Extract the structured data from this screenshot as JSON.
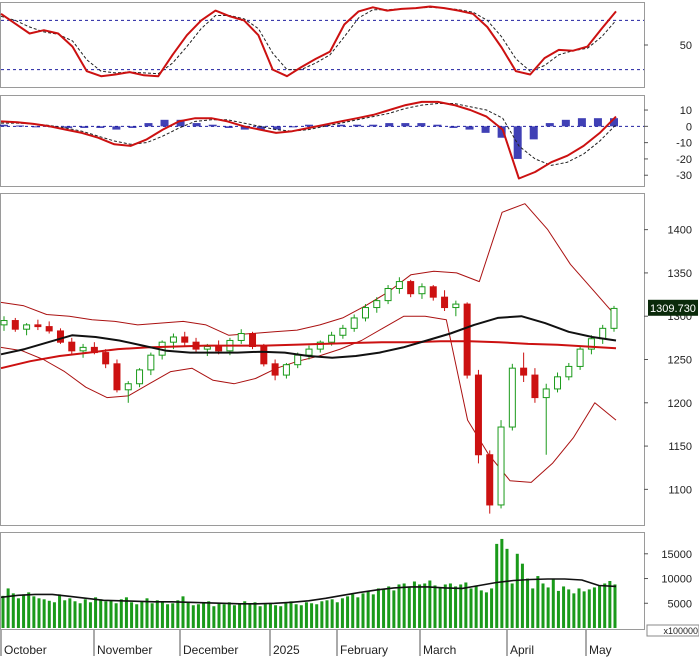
{
  "chart_data": [
    {
      "type": "line",
      "panel": "stochastic-oscillator",
      "y_ticks": [
        "50"
      ],
      "ylim": [
        0,
        100
      ],
      "reference_levels": [
        20,
        80
      ],
      "series": [
        {
          "role": "%K",
          "color": "#cc1111",
          "values": [
            88,
            76,
            64,
            68,
            64,
            48,
            18,
            12,
            14,
            17,
            13,
            12,
            38,
            62,
            80,
            92,
            85,
            80,
            62,
            20,
            12,
            23,
            33,
            42,
            75,
            91,
            96,
            92,
            94,
            95,
            97,
            95,
            92,
            88,
            72,
            47,
            18,
            14,
            34,
            44,
            43,
            48,
            70,
            91
          ]
        },
        {
          "role": "%D",
          "color": "#222222",
          "values": [
            85,
            80,
            72,
            66,
            63,
            55,
            32,
            18,
            16,
            17,
            16,
            15,
            28,
            48,
            70,
            86,
            86,
            82,
            70,
            40,
            20,
            20,
            28,
            38,
            60,
            83,
            93,
            93,
            94,
            95,
            96,
            95,
            93,
            90,
            80,
            60,
            33,
            18,
            25,
            38,
            43,
            46,
            60,
            80
          ]
        }
      ],
      "x_index": "weekly-ish samples Oct 2024 – May 2025"
    },
    {
      "type": "bar+line",
      "panel": "macd",
      "y_ticks": [
        "10",
        "0",
        "-10",
        "-20",
        "-30"
      ],
      "ylim": [
        -36,
        18
      ],
      "series": [
        {
          "role": "macd-line",
          "color": "#cc1111",
          "values": [
            3,
            2.5,
            1.5,
            0,
            -2,
            -4,
            -7,
            -11,
            -12,
            -8,
            -2,
            3,
            5,
            5,
            3,
            0,
            -2,
            -4,
            -3,
            -1,
            1,
            3,
            5,
            7,
            10,
            13,
            15,
            15,
            13,
            10,
            6,
            -2,
            -32,
            -28,
            -22,
            -18,
            -12,
            -4,
            6
          ]
        },
        {
          "role": "signal-line",
          "color": "#222222",
          "values": [
            2,
            2,
            1.5,
            0.5,
            -1,
            -3,
            -6,
            -9,
            -11,
            -10,
            -6,
            -1,
            3,
            4,
            4,
            2,
            0,
            -2,
            -3,
            -2,
            0,
            2,
            4,
            6,
            8,
            11,
            13,
            14,
            14,
            12,
            10,
            5,
            -12,
            -20,
            -24,
            -22,
            -17,
            -9,
            1
          ]
        },
        {
          "role": "histogram",
          "color": "#1f1fa8",
          "values": [
            1,
            0.5,
            0,
            -0.5,
            -1,
            -1,
            -1,
            -2,
            -1,
            2,
            4,
            4,
            2,
            1,
            -1,
            -2,
            -2,
            -2,
            0,
            1,
            1,
            1,
            1,
            1,
            2,
            2,
            2,
            1,
            -1,
            -2,
            -4,
            -7,
            -20,
            -8,
            2,
            4,
            5,
            5,
            5
          ]
        }
      ]
    },
    {
      "type": "candlestick",
      "panel": "price",
      "y_ticks": [
        "1400",
        "1350",
        "1300",
        "1250",
        "1200",
        "1150",
        "1100"
      ],
      "ylim": [
        1060,
        1440
      ],
      "last_price_label": "1309.730",
      "candles_ohlc": [
        [
          1290,
          1300,
          1283,
          1295
        ],
        [
          1295,
          1298,
          1282,
          1285
        ],
        [
          1285,
          1292,
          1278,
          1290
        ],
        [
          1290,
          1296,
          1284,
          1288
        ],
        [
          1288,
          1294,
          1280,
          1283
        ],
        [
          1283,
          1286,
          1268,
          1270
        ],
        [
          1270,
          1275,
          1255,
          1260
        ],
        [
          1260,
          1268,
          1252,
          1264
        ],
        [
          1264,
          1270,
          1256,
          1258
        ],
        [
          1258,
          1262,
          1240,
          1245
        ],
        [
          1245,
          1250,
          1212,
          1215
        ],
        [
          1215,
          1225,
          1200,
          1222
        ],
        [
          1222,
          1240,
          1218,
          1238
        ],
        [
          1238,
          1258,
          1232,
          1255
        ],
        [
          1255,
          1272,
          1250,
          1270
        ],
        [
          1270,
          1280,
          1262,
          1276
        ],
        [
          1276,
          1282,
          1266,
          1270
        ],
        [
          1270,
          1275,
          1258,
          1262
        ],
        [
          1262,
          1268,
          1254,
          1265
        ],
        [
          1265,
          1272,
          1256,
          1260
        ],
        [
          1260,
          1275,
          1255,
          1272
        ],
        [
          1272,
          1285,
          1268,
          1280
        ],
        [
          1280,
          1282,
          1262,
          1265
        ],
        [
          1265,
          1268,
          1242,
          1245
        ],
        [
          1245,
          1250,
          1226,
          1232
        ],
        [
          1232,
          1246,
          1228,
          1244
        ],
        [
          1244,
          1258,
          1240,
          1255
        ],
        [
          1255,
          1266,
          1250,
          1262
        ],
        [
          1262,
          1272,
          1258,
          1270
        ],
        [
          1270,
          1282,
          1266,
          1278
        ],
        [
          1278,
          1290,
          1274,
          1286
        ],
        [
          1286,
          1302,
          1282,
          1298
        ],
        [
          1298,
          1314,
          1294,
          1310
        ],
        [
          1310,
          1322,
          1304,
          1318
        ],
        [
          1318,
          1336,
          1314,
          1332
        ],
        [
          1332,
          1345,
          1326,
          1340
        ],
        [
          1340,
          1342,
          1322,
          1326
        ],
        [
          1326,
          1338,
          1320,
          1334
        ],
        [
          1334,
          1336,
          1318,
          1322
        ],
        [
          1322,
          1330,
          1306,
          1310
        ],
        [
          1310,
          1318,
          1300,
          1314
        ],
        [
          1314,
          1316,
          1228,
          1232
        ],
        [
          1232,
          1238,
          1130,
          1140
        ],
        [
          1140,
          1145,
          1072,
          1082
        ],
        [
          1082,
          1180,
          1078,
          1172
        ],
        [
          1172,
          1245,
          1168,
          1240
        ],
        [
          1240,
          1258,
          1224,
          1232
        ],
        [
          1232,
          1240,
          1200,
          1206
        ],
        [
          1206,
          1222,
          1140,
          1216
        ],
        [
          1216,
          1235,
          1212,
          1230
        ],
        [
          1230,
          1246,
          1226,
          1242
        ],
        [
          1242,
          1266,
          1238,
          1262
        ],
        [
          1262,
          1278,
          1256,
          1274
        ],
        [
          1274,
          1290,
          1268,
          1286
        ],
        [
          1286,
          1312,
          1282,
          1309
        ]
      ],
      "overlays": [
        {
          "role": "moving-average-long",
          "color": "#cc1111",
          "values": [
            1240,
            1248,
            1254,
            1258,
            1262,
            1264,
            1265,
            1266,
            1266,
            1266,
            1267,
            1268,
            1269,
            1270,
            1270,
            1271,
            1271,
            1270,
            1268,
            1267,
            1265,
            1263
          ]
        },
        {
          "role": "moving-average-mid",
          "color": "#111111",
          "values": [
            1256,
            1262,
            1270,
            1278,
            1276,
            1272,
            1266,
            1260,
            1258,
            1258,
            1258,
            1259,
            1258,
            1254,
            1252,
            1254,
            1258,
            1264,
            1272,
            1280,
            1290,
            1298,
            1300,
            1292,
            1282,
            1276,
            1272
          ]
        },
        {
          "role": "bollinger-upper",
          "color": "#aa1111",
          "values": [
            1316,
            1312,
            1302,
            1300,
            1296,
            1294,
            1290,
            1292,
            1294,
            1290,
            1278,
            1280,
            1282,
            1284,
            1290,
            1298,
            1312,
            1328,
            1348,
            1352,
            1350,
            1340,
            1420,
            1430,
            1400,
            1360,
            1330,
            1300
          ]
        },
        {
          "role": "bollinger-lower",
          "color": "#aa1111",
          "values": [
            1264,
            1260,
            1250,
            1236,
            1218,
            1206,
            1208,
            1222,
            1236,
            1240,
            1226,
            1222,
            1228,
            1240,
            1248,
            1254,
            1262,
            1272,
            1286,
            1300,
            1300,
            1296,
            1180,
            1140,
            1110,
            1108,
            1130,
            1160,
            1200,
            1180
          ]
        }
      ]
    },
    {
      "type": "bar+line",
      "panel": "volume",
      "y_ticks": [
        "15000",
        "10000",
        "5000"
      ],
      "ylim": [
        0,
        19000
      ],
      "unit_label": "x100000",
      "bar_color": "#1a9a1a",
      "volume_values": [
        6500,
        8000,
        7000,
        6000,
        6800,
        7200,
        6400,
        6000,
        5800,
        5500,
        5200,
        6800,
        5600,
        6000,
        5400,
        5000,
        5800,
        5200,
        6200,
        5800,
        5400,
        5600,
        5000,
        5800,
        6200,
        5200,
        4800,
        5400,
        6000,
        5000,
        5600,
        5200,
        4800,
        5000,
        5600,
        6400,
        5200,
        4600,
        4800,
        5000,
        5400,
        4400,
        5000,
        4800,
        5200,
        4600,
        5000,
        5400,
        4800,
        5200,
        4400,
        4800,
        5000,
        4600,
        4400,
        5000,
        5400,
        4800,
        4600,
        5200,
        5000,
        4800,
        5400,
        5600,
        5800,
        5200,
        6000,
        6400,
        6800,
        6200,
        7000,
        7400,
        6800,
        8000,
        7800,
        8400,
        7600,
        8800,
        9000,
        8400,
        9400,
        8800,
        9000,
        9600,
        8600,
        8200,
        8800,
        9000,
        8400,
        8800,
        9200,
        8000,
        8600,
        7600,
        7200,
        8000,
        17000,
        18000,
        16000,
        9000,
        15000,
        13000,
        10000,
        8000,
        10500,
        9000,
        8200,
        10000,
        7500,
        8400,
        7800,
        7000,
        8000,
        7400,
        7800,
        8200,
        8500,
        9000,
        9500,
        8800
      ],
      "moving_average": {
        "color": "#111111",
        "values": [
          6200,
          6600,
          6800,
          6800,
          6400,
          6000,
          5600,
          5500,
          5400,
          5300,
          5300,
          5200,
          5100,
          5000,
          4900,
          4900,
          5000,
          5200,
          5500,
          6000,
          6600,
          7200,
          7700,
          8100,
          8300,
          8300,
          8100,
          8000,
          8600,
          9200,
          9600,
          9800,
          9900,
          9900,
          9700,
          8600,
          8400
        ]
      }
    }
  ],
  "x_axis_labels": [
    "October",
    "November",
    "December",
    "2025",
    "February",
    "March",
    "April",
    "May"
  ]
}
